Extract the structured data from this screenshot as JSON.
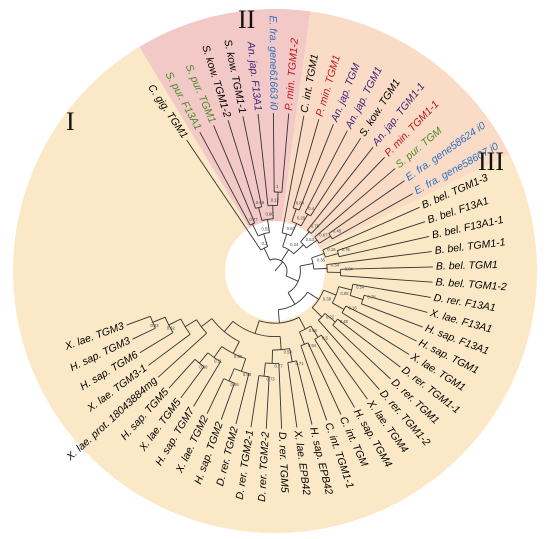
{
  "clades": [
    {
      "label": "I",
      "color": "#f2c9c6"
    },
    {
      "label": "II",
      "color": "#fadcc6"
    },
    {
      "label": "III",
      "color": "#fbe8c6"
    }
  ],
  "leaves": [
    {
      "label": "C. gig. TGM1",
      "color": "#000000"
    },
    {
      "label": "S. pur. F13A1",
      "color": "#4a8a2a"
    },
    {
      "label": "S. pur. TGM1",
      "color": "#4a8a2a"
    },
    {
      "label": "S. kow. TGM1-2",
      "color": "#000000"
    },
    {
      "label": "S. kow. TGM1-1",
      "color": "#000000"
    },
    {
      "label": "An. jap. F13A1",
      "color": "#3a1f7a"
    },
    {
      "label": "E. fra. gene61663 i0",
      "color": "#2f6fc2"
    },
    {
      "label": "P. min. TGM1-2",
      "color": "#c0141a"
    },
    {
      "label": "C. int. TGM1",
      "color": "#000000"
    },
    {
      "label": "P. min. TGM1",
      "color": "#c0141a"
    },
    {
      "label": "An. jap. TGM",
      "color": "#3a1f7a"
    },
    {
      "label": "An. jap. TGM1",
      "color": "#3a1f7a"
    },
    {
      "label": "S. kow. TGM1",
      "color": "#000000"
    },
    {
      "label": "An. jap. TGM1-1",
      "color": "#3a1f7a"
    },
    {
      "label": "P. min. TGM1-1",
      "color": "#c0141a"
    },
    {
      "label": "S. pur. TGM",
      "color": "#4a8a2a"
    },
    {
      "label": "E. fra. gene58624 i0",
      "color": "#2f6fc2"
    },
    {
      "label": "E. fra. gene58607 i0",
      "color": "#2f6fc2"
    },
    {
      "label": "B. bel. TGM1-3",
      "color": "#000000"
    },
    {
      "label": "B. bel. F13A1",
      "color": "#000000"
    },
    {
      "label": "B. bel. F13A1-1",
      "color": "#000000"
    },
    {
      "label": "B. bel. TGM1-1",
      "color": "#000000"
    },
    {
      "label": "B. bel. TGM1",
      "color": "#000000"
    },
    {
      "label": "B. bel. TGM1-2",
      "color": "#000000"
    },
    {
      "label": "D. rer. F13A1",
      "color": "#000000"
    },
    {
      "label": "X. lae. F13A1",
      "color": "#000000"
    },
    {
      "label": "H. sap. F13A1",
      "color": "#000000"
    },
    {
      "label": "H. sap. TGM1",
      "color": "#000000"
    },
    {
      "label": "X. lae. TGM1",
      "color": "#000000"
    },
    {
      "label": "D. rer. TGM1-1",
      "color": "#000000"
    },
    {
      "label": "D. rer. TGM1",
      "color": "#000000"
    },
    {
      "label": "D. rer. TGM1-2",
      "color": "#000000"
    },
    {
      "label": "X. lae. TGM4",
      "color": "#000000"
    },
    {
      "label": "H. sap. TGM4",
      "color": "#000000"
    },
    {
      "label": "C. int. TGM",
      "color": "#000000"
    },
    {
      "label": "C. int. TGM1-1",
      "color": "#000000"
    },
    {
      "label": "H. sap. EPB42",
      "color": "#000000"
    },
    {
      "label": "X. lae. EPB42",
      "color": "#000000"
    },
    {
      "label": "D. rer. TGM5",
      "color": "#000000"
    },
    {
      "label": "D. rer. TGM2-2",
      "color": "#000000"
    },
    {
      "label": "D. rer. TGM2-1",
      "color": "#000000"
    },
    {
      "label": "D. rer. TGM2",
      "color": "#000000"
    },
    {
      "label": "H. sap. TGM2",
      "color": "#000000"
    },
    {
      "label": "X. lae. TGM2",
      "color": "#000000"
    },
    {
      "label": "H. sap. TGM7",
      "color": "#000000"
    },
    {
      "label": "X. lae. TGM5",
      "color": "#000000"
    },
    {
      "label": "H. sap. TGM5",
      "color": "#000000"
    },
    {
      "label": "X. lae. prot. 18043884mg",
      "color": "#000000"
    },
    {
      "label": "X. lae. TGM3-1",
      "color": "#000000"
    },
    {
      "label": "H. sap. TGM6",
      "color": "#000000"
    },
    {
      "label": "H. sap. TGM3",
      "color": "#000000"
    },
    {
      "label": "X. lae. TGM3",
      "color": "#000000"
    }
  ],
  "bootstrap": [
    "0.77",
    "0.68",
    "1",
    "0.12",
    "0.96",
    "0.53",
    "0.2",
    "0.84",
    "0.4",
    "0.29",
    "0.63",
    "0.76",
    "0.45",
    "0.67",
    "0.53",
    "0.24",
    "0.75",
    "0.16",
    "0.04",
    "0.54",
    "0.36",
    "0.78",
    "0.54",
    "0.16",
    "0.05",
    "0.48",
    "0.22",
    "0.39",
    "0.5",
    "0.94",
    "0.98",
    "0.71",
    "0.73",
    "0.77",
    "0.59",
    "0.46",
    "0.99",
    "0.98",
    "0.11",
    "0.58",
    "0.23",
    "0.62"
  ]
}
